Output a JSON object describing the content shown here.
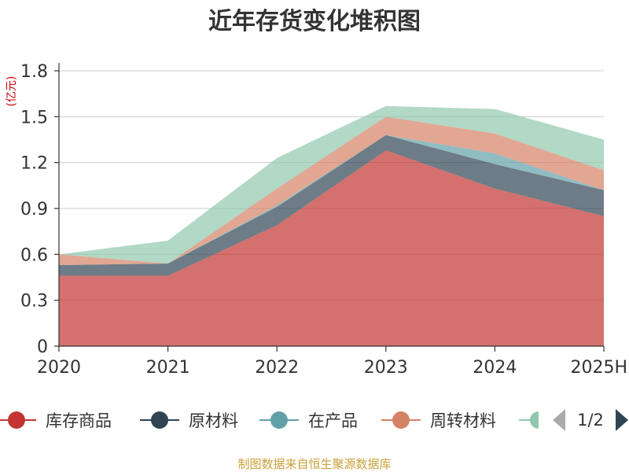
{
  "chart_data": {
    "type": "area",
    "title": "近年存货变化堆积图",
    "unit_label": "(亿元)",
    "categories": [
      "2020",
      "2021",
      "2022",
      "2023",
      "2024",
      "2025H"
    ],
    "ylim": [
      0,
      1.8
    ],
    "yticks": [
      "0",
      "0.3",
      "0.6",
      "0.9",
      "1.2",
      "1.5",
      "1.8"
    ],
    "grid": true,
    "stacked": true,
    "series": [
      {
        "name": "库存商品",
        "color": "#c23531",
        "values": [
          0.46,
          0.46,
          0.79,
          1.28,
          1.03,
          0.85
        ]
      },
      {
        "name": "原材料",
        "color": "#2f4554",
        "values": [
          0.07,
          0.08,
          0.12,
          0.1,
          0.16,
          0.17
        ]
      },
      {
        "name": "在产品",
        "color": "#61a0a8",
        "values": [
          0.0,
          0.0,
          0.01,
          0.0,
          0.07,
          0.0
        ]
      },
      {
        "name": "周转材料",
        "color": "#d48265",
        "values": [
          0.07,
          0.0,
          0.11,
          0.12,
          0.13,
          0.13
        ]
      },
      {
        "name": "",
        "color": "#91c7ae",
        "values": [
          0.0,
          0.15,
          0.2,
          0.07,
          0.16,
          0.2
        ]
      }
    ],
    "legend": {
      "position": "bottom",
      "page": "1/2"
    }
  },
  "source_note": "制图数据来自恒生聚源数据库"
}
